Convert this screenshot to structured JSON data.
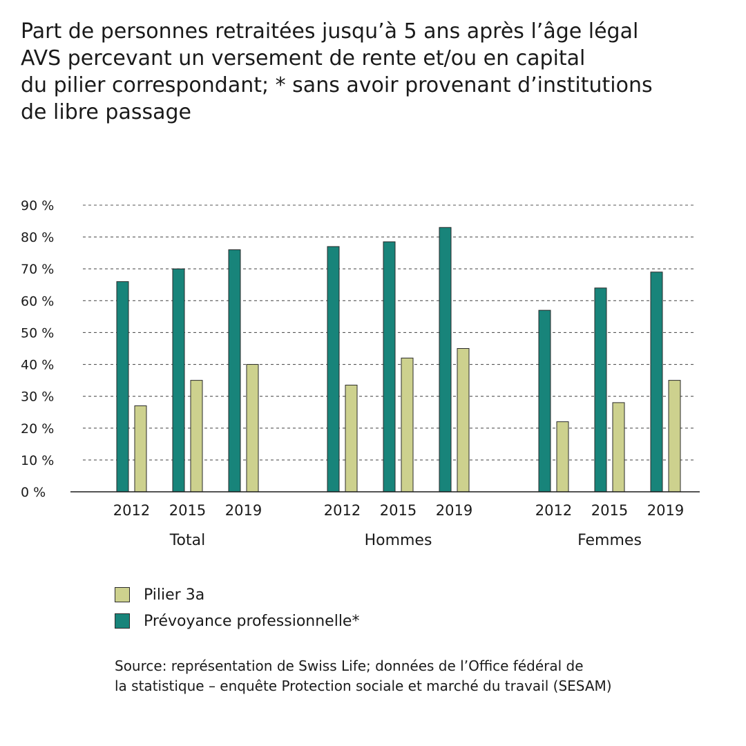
{
  "title": {
    "lines": [
      "Part de personnes retraitées jusqu’à 5 ans après l’âge légal",
      "AVS percevant un versement de rente et/ou en capital",
      "du pilier correspondant; * sans avoir provenant d’institutions",
      "de libre passage"
    ]
  },
  "legend": {
    "items": [
      {
        "label": "Pilier 3a",
        "color": "#cdd18e"
      },
      {
        "label": "Prévoyance professionnelle*",
        "color": "#18847a"
      }
    ]
  },
  "source": {
    "lines": [
      "Source: représentation de Swiss Life; données de l’Office fédéral de",
      "la statistique – enquête Protection sociale et marché du travail (SESAM)"
    ]
  },
  "chart_data": {
    "type": "bar",
    "groups": [
      "Total",
      "Hommes",
      "Femmes"
    ],
    "categories": [
      "2012",
      "2015",
      "2019"
    ],
    "ylim": [
      0,
      90
    ],
    "yticks": [
      0,
      10,
      20,
      30,
      40,
      50,
      60,
      70,
      80,
      90
    ],
    "ytick_labels": [
      "0 %",
      "10 %",
      "20 %",
      "30 %",
      "40 %",
      "50 %",
      "60 %",
      "70 %",
      "80 %",
      "90 %"
    ],
    "grid": "horizontal dashed",
    "legend_position": "bottom",
    "series": [
      {
        "name": "Prévoyance professionnelle*",
        "color": "#18847a",
        "values": [
          [
            66,
            70,
            76
          ],
          [
            77,
            78.5,
            83
          ],
          [
            57,
            64,
            69
          ]
        ]
      },
      {
        "name": "Pilier 3a",
        "color": "#cdd18e",
        "values": [
          [
            27,
            35,
            40
          ],
          [
            33.5,
            42,
            45
          ],
          [
            22,
            28,
            35
          ]
        ]
      }
    ]
  }
}
